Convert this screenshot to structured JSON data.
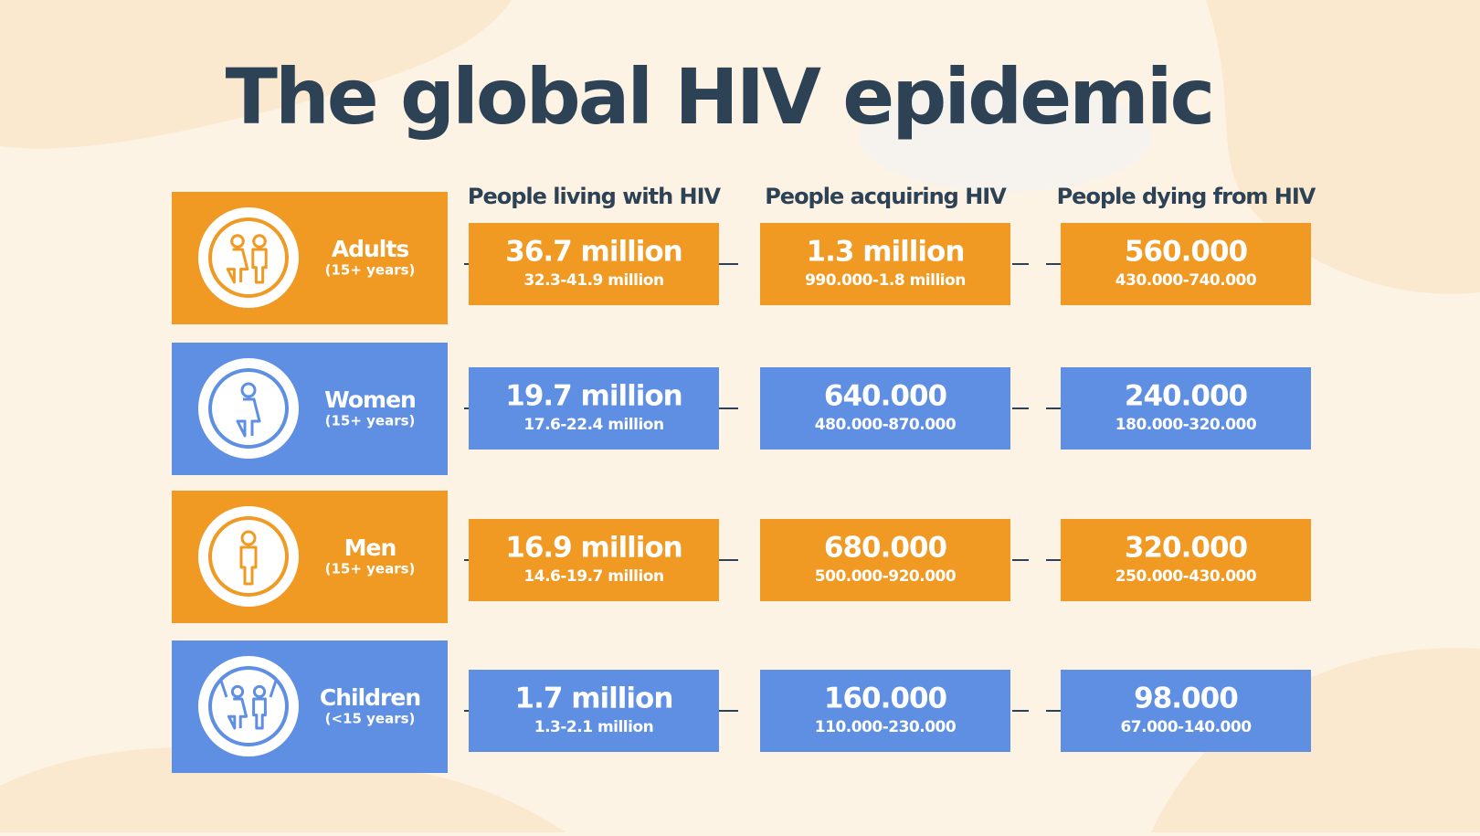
{
  "title": "The global HIV epidemic",
  "columns": [
    "People living with HIV",
    "People acquiring HIV",
    "People dying from HIV"
  ],
  "rows": [
    {
      "label": "Adults",
      "sublabel": "(15+ years)",
      "cells": [
        {
          "value": "36.7 million",
          "range": "32.3-41.9 million"
        },
        {
          "value": "1.3 million",
          "range": "990.000-1.8 million"
        },
        {
          "value": "560.000",
          "range": "430.000-740.000"
        }
      ]
    },
    {
      "label": "Women",
      "sublabel": "(15+ years)",
      "cells": [
        {
          "value": "19.7 million",
          "range": "17.6-22.4 million"
        },
        {
          "value": "640.000",
          "range": "480.000-870.000"
        },
        {
          "value": "240.000",
          "range": "180.000-320.000"
        }
      ]
    },
    {
      "label": "Men",
      "sublabel": "(15+ years)",
      "cells": [
        {
          "value": "16.9 million",
          "range": "14.6-19.7 million"
        },
        {
          "value": "680.000",
          "range": "500.000-920.000"
        },
        {
          "value": "320.000",
          "range": "250.000-430.000"
        }
      ]
    },
    {
      "label": "Children",
      "sublabel": "(<15 years)",
      "cells": [
        {
          "value": "1.7 million",
          "range": "1.3-2.1 million"
        },
        {
          "value": "160.000",
          "range": "110.000-230.000"
        },
        {
          "value": "98.000",
          "range": "67.000-140.000"
        }
      ]
    }
  ]
}
